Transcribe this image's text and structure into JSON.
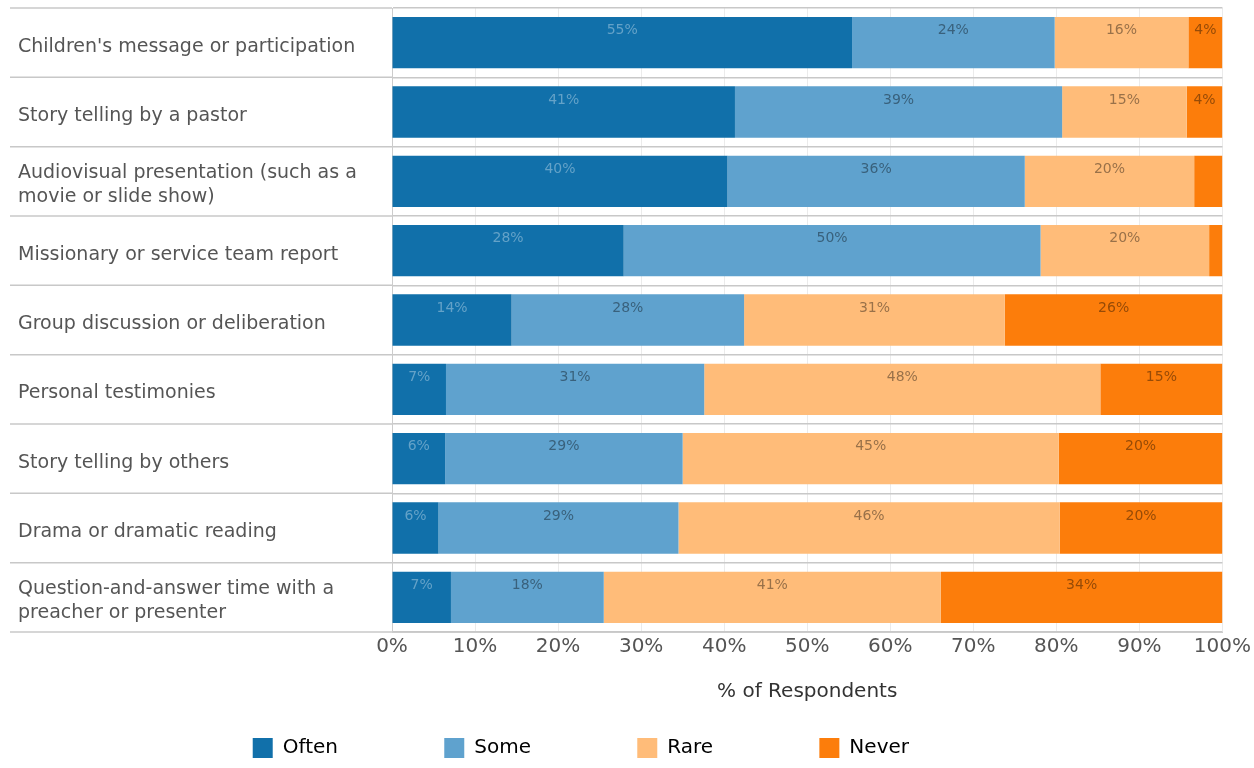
{
  "chart_data": {
    "type": "bar",
    "orientation": "horizontal",
    "stacked": true,
    "xlabel": "% of Respondents",
    "categories": [
      "Children's message or participation",
      "Story telling by a pastor",
      "Audiovisual presentation (such as a movie or slide show)",
      "Missionary or service team report",
      "Group discussion or deliberation",
      "Personal testimonies",
      "Story telling by others",
      "Drama or dramatic reading",
      "Question-and-answer time with a preacher or presenter"
    ],
    "series": [
      {
        "name": "Often",
        "color": "#1170aa",
        "values": [
          55.4,
          41.3,
          40.4,
          27.9,
          14.4,
          6.5,
          6.4,
          5.6,
          7.1
        ],
        "value_labels": [
          "55%",
          "41%",
          "40%",
          "28%",
          "14%",
          "7%",
          "6%",
          "6%",
          "7%"
        ]
      },
      {
        "name": "Some",
        "color": "#5fa2ce",
        "values": [
          24.4,
          39.4,
          35.8,
          50.2,
          28.0,
          31.1,
          28.6,
          28.9,
          18.4
        ],
        "value_labels": [
          "24%",
          "39%",
          "36%",
          "50%",
          "28%",
          "31%",
          "29%",
          "29%",
          "18%"
        ]
      },
      {
        "name": "Rare",
        "color": "#ffbc79",
        "values": [
          16.1,
          15.0,
          20.4,
          20.3,
          31.4,
          47.7,
          45.3,
          45.9,
          40.6
        ],
        "value_labels": [
          "16%",
          "15%",
          "20%",
          "20%",
          "31%",
          "48%",
          "45%",
          "46%",
          "41%"
        ]
      },
      {
        "name": "Never",
        "color": "#fc7d0b",
        "values": [
          4.1,
          4.3,
          3.4,
          1.6,
          26.2,
          14.7,
          19.7,
          19.6,
          33.9
        ],
        "value_labels": [
          "4%",
          "4%",
          null,
          null,
          "26%",
          "15%",
          "20%",
          "20%",
          "34%"
        ]
      }
    ],
    "xlim": [
      0,
      100
    ],
    "xticks": [
      {
        "value": 0,
        "label": "0%"
      },
      {
        "value": 10,
        "label": "10%"
      },
      {
        "value": 20,
        "label": "20%"
      },
      {
        "value": 30,
        "label": "30%"
      },
      {
        "value": 40,
        "label": "40%"
      },
      {
        "value": 50,
        "label": "50%"
      },
      {
        "value": 60,
        "label": "60%"
      },
      {
        "value": 70,
        "label": "70%"
      },
      {
        "value": 80,
        "label": "80%"
      },
      {
        "value": 90,
        "label": "90%"
      },
      {
        "value": 100,
        "label": "100%"
      }
    ],
    "grid": true,
    "legend": "bottom"
  }
}
